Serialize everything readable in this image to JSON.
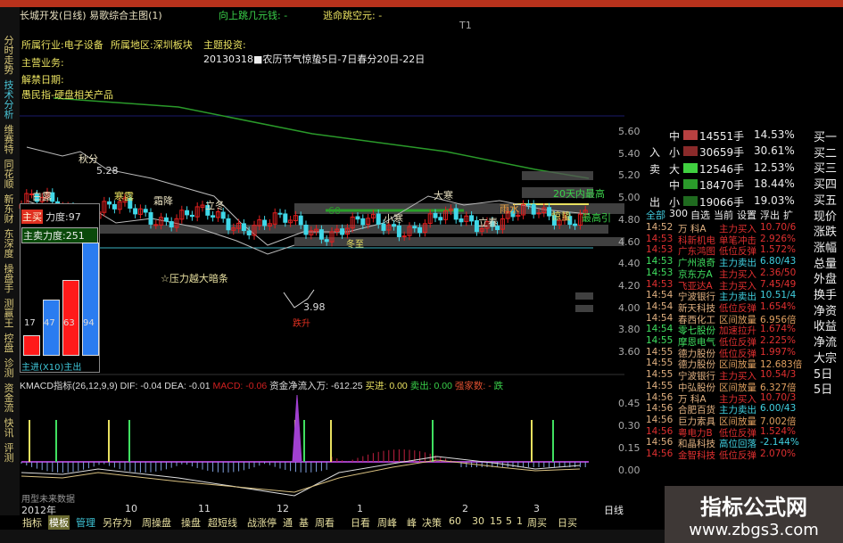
{
  "header": {
    "title": "长城开发(日线) 易歌综合主图(1)",
    "jump_up": "向上跳几元钱: -",
    "escape": "逃命跳空元: -",
    "right_label": "T1"
  },
  "info": {
    "industry": "所属行业:电子设备",
    "region": "所属地区:深圳板块",
    "theme": "主题投资:",
    "solar_term": "20130318■农历节气惊蛰5日-7日春分20日-22日",
    "business": "主营业务:",
    "unlock": "解禁日期:",
    "concept": "愚民指-硬盘相关产品"
  },
  "left_tabs": [
    "分时走势",
    "技术分析",
    "维赛特",
    "同花顺",
    "新东财",
    "东深度",
    "操盘手",
    "测赢王",
    "控盘",
    "诊测",
    "资金流",
    "快讯",
    "评测"
  ],
  "chart_labels": {
    "qiufen": "秋分",
    "high": "5.28",
    "bailu": "白露",
    "hanlu": "寒露",
    "shuangjiang": "霜降",
    "lidong": "立冬",
    "dongzhi": "冬至",
    "xiaohan": "小寒",
    "dahan": "大寒",
    "lichun": "立春",
    "yushui": "雨水",
    "jingzhe": "惊蛰",
    "high20": "20天内最高",
    "ma60": "60",
    "high_hint": "最高引",
    "pressure": "☆压力越大暗条",
    "low": "3.98",
    "low_tag": "跌升"
  },
  "inset": {
    "buy_tag": "主买",
    "buy_force": "力度:97",
    "sell_force": "主卖力度:251",
    "bars": [
      {
        "v": "17",
        "c": "#ff1a1a",
        "h": 17
      },
      {
        "v": "47",
        "c": "#2a7cf0",
        "h": 47
      },
      {
        "v": "63",
        "c": "#ff1a1a",
        "h": 63
      },
      {
        "v": "94",
        "c": "#2a7cf0",
        "h": 94
      }
    ],
    "footer": "主进(X10)主出"
  },
  "price_axis": [
    "5.60",
    "5.40",
    "5.20",
    "5.00",
    "4.80",
    "4.60",
    "4.40",
    "4.20",
    "4.00",
    "3.80",
    "3.60"
  ],
  "macd_axis": [
    "0.45",
    "0.30",
    "0.15",
    "0.00"
  ],
  "indicator": {
    "name": "KMACD指标(26,12,9,9)",
    "dif": "DIF: -0.04",
    "dea": "DEA: -0.01",
    "macd": "MACD: -0.06",
    "netflow": "资金净流入万: -612.25",
    "buy": "买进: 0.00",
    "sell": "卖出: 0.00",
    "strength": "强家数: -",
    "trend": "跌"
  },
  "future_note": "用型未来数据",
  "date_axis": [
    "2012年",
    "10",
    "11",
    "12",
    "1",
    "2",
    "3"
  ],
  "period": "日线",
  "flow": [
    {
      "side": "",
      "size": "中",
      "vol": "14551手",
      "pct": "14.53%",
      "color": "#b84040"
    },
    {
      "side": "入",
      "size": "小",
      "vol": "30659手",
      "pct": "30.61%",
      "color": "#8a2a2a"
    },
    {
      "side": "卖",
      "size": "大",
      "vol": "12546手",
      "pct": "12.53%",
      "color": "#40d040"
    },
    {
      "side": "",
      "size": "中",
      "vol": "18470手",
      "pct": "18.44%",
      "color": "#2a9a2a"
    },
    {
      "side": "出",
      "size": "小",
      "vol": "19066手",
      "pct": "19.03%",
      "color": "#1f6a1f"
    }
  ],
  "panel_tabs": [
    "全部",
    "300",
    "自选",
    "当前",
    "设置",
    "浮出",
    "扩"
  ],
  "right_col": [
    "买一",
    "买二",
    "买三",
    "买四",
    "买五",
    "现价",
    "涨跌",
    "涨幅",
    "总量",
    "外盘",
    "换手",
    "净资",
    "收益",
    "净流",
    "大宗",
    "5日",
    "5日"
  ],
  "radar": [
    [
      "14:52",
      "万 科A",
      "主力买入",
      "10.70/6",
      "#e0b080",
      "#e03030",
      "#e03030"
    ],
    [
      "14:53",
      "科新机电",
      "单笔冲击",
      "2.926%",
      "#e03030",
      "#e03030",
      "#e03030"
    ],
    [
      "14:53",
      "广东鸿图",
      "低位反弹",
      "1.572%",
      "#e03030",
      "#e03030",
      "#e03030"
    ],
    [
      "14:53",
      "广州浪奇",
      "主力卖出",
      "6.80/43",
      "#40e060",
      "#40d0e0",
      "#40d0e0"
    ],
    [
      "14:53",
      "京东方A",
      "主力买入",
      "2.36/50",
      "#40e060",
      "#e03030",
      "#e03030"
    ],
    [
      "14:53",
      "飞亚达A",
      "主力买入",
      "7.45/49",
      "#e03030",
      "#e03030",
      "#e03030"
    ],
    [
      "14:54",
      "宁波银行",
      "主力卖出",
      "10.51/4",
      "#e0b080",
      "#40d0e0",
      "#40d0e0"
    ],
    [
      "14:54",
      "新天科技",
      "低位反弹",
      "1.654%",
      "#e0b080",
      "#e03030",
      "#e03030"
    ],
    [
      "14:54",
      "春西化工",
      "区间放量",
      "6.956倍",
      "#e0b080",
      "#e0a060",
      "#e0a060"
    ],
    [
      "14:54",
      "零七股份",
      "加速拉升",
      "1.674%",
      "#40e060",
      "#e03030",
      "#e03030"
    ],
    [
      "14:55",
      "摩恩电气",
      "低位反弹",
      "2.225%",
      "#40e060",
      "#e03030",
      "#e03030"
    ],
    [
      "14:55",
      "德力股份",
      "低位反弹",
      "1.997%",
      "#e0b080",
      "#e03030",
      "#e03030"
    ],
    [
      "14:55",
      "德力股份",
      "区间放量",
      "12.683倍",
      "#e0b080",
      "#e0a060",
      "#e0a060"
    ],
    [
      "14:55",
      "宁波银行",
      "主力买入",
      "10.54/3",
      "#e0b080",
      "#e03030",
      "#e03030"
    ],
    [
      "14:55",
      "中弘股份",
      "区间放量",
      "6.327倍",
      "#e0b080",
      "#e0a060",
      "#e0a060"
    ],
    [
      "14:56",
      "万 科A",
      "主力买入",
      "10.70/3",
      "#e0b080",
      "#e03030",
      "#e03030"
    ],
    [
      "14:56",
      "合肥百货",
      "主力卖出",
      "6.00/43",
      "#e0b080",
      "#40d0e0",
      "#40d0e0"
    ],
    [
      "14:56",
      "巨力索具",
      "区间放量",
      "7.002倍",
      "#e0b080",
      "#e0a060",
      "#e0a060"
    ],
    [
      "14:56",
      "粤电力B",
      "低位反弹",
      "1.524%",
      "#e03030",
      "#e03030",
      "#e03030"
    ],
    [
      "14:56",
      "和晶科技",
      "高位回落",
      "-2.144%",
      "#e0b080",
      "#40d0e0",
      "#40d0e0"
    ],
    [
      "14:56",
      "金智科技",
      "低位反弹",
      "2.070%",
      "#e03030",
      "#e03030",
      "#e03030"
    ]
  ],
  "toolbar": [
    "指标",
    "模板",
    "管理",
    "另存为",
    "周操盘",
    "操盘",
    "超短线",
    "战涨停",
    "通",
    "基",
    "周看",
    "日看",
    "周峰",
    "峰",
    "决策",
    "60",
    "30",
    "15",
    "5",
    "1",
    "周买",
    "日买"
  ],
  "watermark": {
    "name": "指标公式网",
    "url": "www.zbgs3.com"
  }
}
